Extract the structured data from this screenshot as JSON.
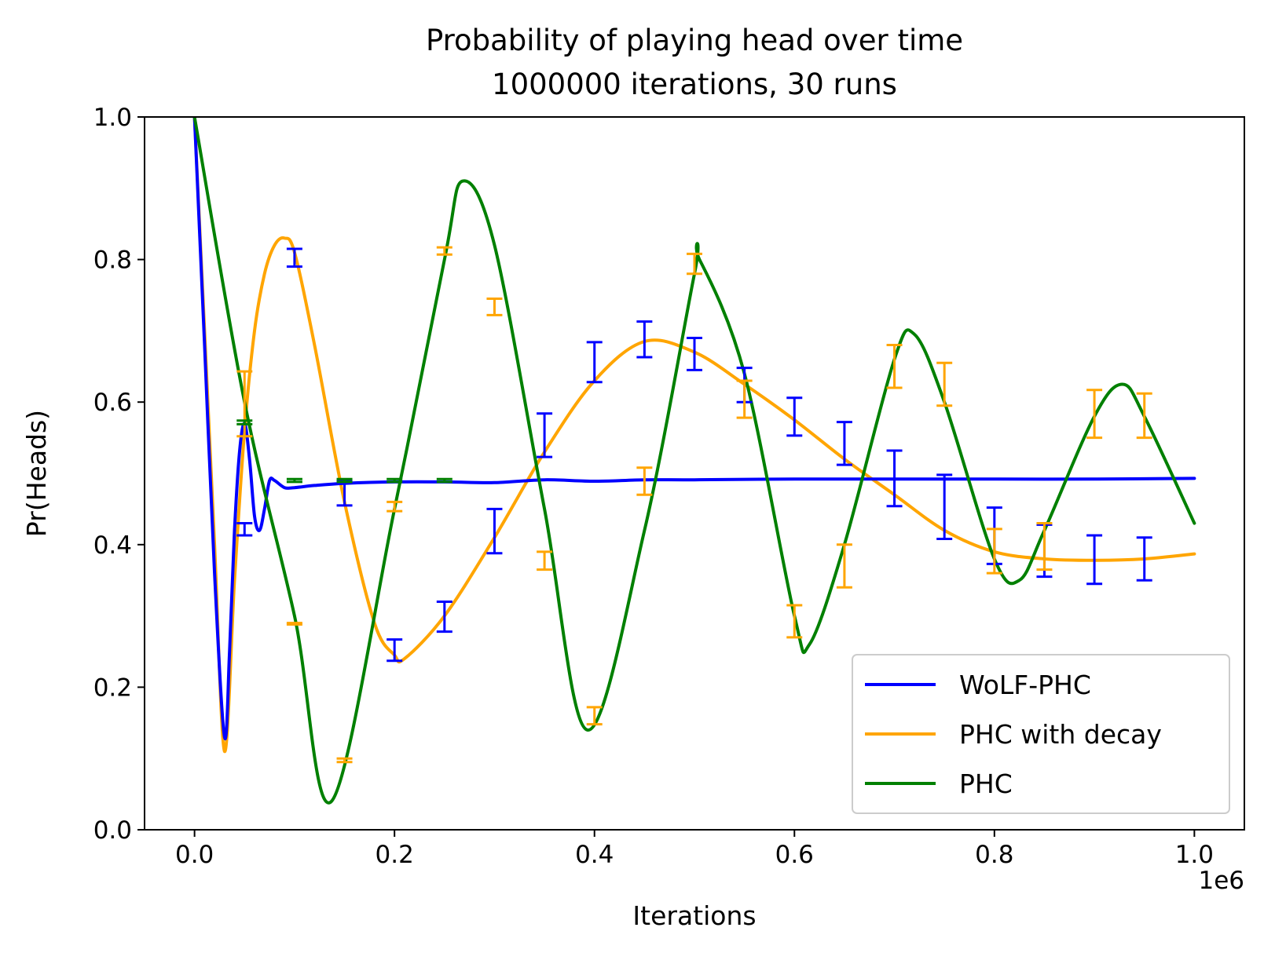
{
  "chart_data": {
    "type": "line",
    "title": "Probability of playing head over time",
    "subtitle": "1000000 iterations, 30 runs",
    "xlabel": "Iterations",
    "ylabel": "Pr(Heads)",
    "x_offset_label": "1e6",
    "xlim": [
      -0.05,
      1.05
    ],
    "ylim": [
      0,
      1
    ],
    "x_ticks": [
      0.0,
      0.2,
      0.4,
      0.6,
      0.8,
      1.0
    ],
    "x_tick_labels": [
      "0.0",
      "0.2",
      "0.4",
      "0.6",
      "0.8",
      "1.0"
    ],
    "y_ticks": [
      0.0,
      0.2,
      0.4,
      0.6,
      0.8,
      1.0
    ],
    "y_tick_labels": [
      "0.0",
      "0.2",
      "0.4",
      "0.6",
      "0.8",
      "1.0"
    ],
    "grid": false,
    "legend_position": "lower-right",
    "series": [
      {
        "name": "WoLF-PHC",
        "color": "#0000ff",
        "x": [
          0,
          0.01,
          0.02,
          0.03,
          0.035,
          0.04,
          0.045,
          0.05,
          0.055,
          0.06,
          0.065,
          0.07,
          0.075,
          0.08,
          0.09,
          0.1,
          0.12,
          0.15,
          0.2,
          0.25,
          0.3,
          0.35,
          0.4,
          0.45,
          0.5,
          0.6,
          0.7,
          0.8,
          0.9,
          1.0
        ],
        "y": [
          1.0,
          0.68,
          0.36,
          0.13,
          0.25,
          0.42,
          0.53,
          0.57,
          0.52,
          0.44,
          0.42,
          0.45,
          0.49,
          0.49,
          0.48,
          0.48,
          0.483,
          0.486,
          0.488,
          0.488,
          0.487,
          0.491,
          0.489,
          0.491,
          0.491,
          0.492,
          0.492,
          0.492,
          0.492,
          0.493
        ],
        "error_x": [
          0.05,
          0.1,
          0.15,
          0.2,
          0.25,
          0.3,
          0.35,
          0.4,
          0.45,
          0.5,
          0.55,
          0.6,
          0.65,
          0.7,
          0.75,
          0.8,
          0.85,
          0.9,
          0.95
        ],
        "error_low": [
          0.413,
          0.79,
          0.455,
          0.237,
          0.278,
          0.388,
          0.523,
          0.628,
          0.663,
          0.645,
          0.6,
          0.553,
          0.512,
          0.454,
          0.408,
          0.373,
          0.355,
          0.345,
          0.35
        ],
        "error_high": [
          0.43,
          0.815,
          0.49,
          0.267,
          0.32,
          0.45,
          0.584,
          0.684,
          0.713,
          0.69,
          0.648,
          0.606,
          0.572,
          0.532,
          0.498,
          0.452,
          0.428,
          0.413,
          0.41
        ]
      },
      {
        "name": "PHC with decay",
        "color": "#ffa500",
        "x": [
          0,
          0.01,
          0.02,
          0.03,
          0.04,
          0.05,
          0.06,
          0.07,
          0.08,
          0.09,
          0.1,
          0.12,
          0.15,
          0.18,
          0.2,
          0.21,
          0.25,
          0.3,
          0.35,
          0.4,
          0.45,
          0.5,
          0.55,
          0.6,
          0.65,
          0.7,
          0.75,
          0.8,
          0.85,
          0.9,
          0.95,
          1.0
        ],
        "y": [
          1.0,
          0.7,
          0.4,
          0.11,
          0.35,
          0.56,
          0.7,
          0.78,
          0.82,
          0.83,
          0.81,
          0.68,
          0.46,
          0.29,
          0.245,
          0.24,
          0.3,
          0.41,
          0.53,
          0.63,
          0.685,
          0.67,
          0.625,
          0.575,
          0.52,
          0.47,
          0.42,
          0.39,
          0.38,
          0.378,
          0.38,
          0.387
        ],
        "error_x": [
          0.05,
          0.1,
          0.15,
          0.2,
          0.25,
          0.3,
          0.35,
          0.4,
          0.45,
          0.5,
          0.55,
          0.6,
          0.65,
          0.7,
          0.75,
          0.8,
          0.85,
          0.9,
          0.95
        ],
        "error_low": [
          0.552,
          0.288,
          0.095,
          0.447,
          0.807,
          0.722,
          0.365,
          0.148,
          0.47,
          0.78,
          0.578,
          0.27,
          0.34,
          0.62,
          0.595,
          0.36,
          0.365,
          0.55,
          0.55
        ],
        "error_high": [
          0.643,
          0.29,
          0.1,
          0.46,
          0.817,
          0.745,
          0.39,
          0.172,
          0.508,
          0.808,
          0.63,
          0.315,
          0.4,
          0.68,
          0.655,
          0.422,
          0.43,
          0.617,
          0.612
        ]
      },
      {
        "name": "PHC",
        "color": "#008000",
        "x": [
          0,
          0.05,
          0.1,
          0.137,
          0.2,
          0.25,
          0.268,
          0.3,
          0.35,
          0.393,
          0.45,
          0.5,
          0.505,
          0.55,
          0.6,
          0.615,
          0.65,
          0.7,
          0.72,
          0.75,
          0.8,
          0.825,
          0.85,
          0.9,
          0.928,
          0.95,
          1.0
        ],
        "y": [
          1.0,
          0.6,
          0.3,
          0.04,
          0.45,
          0.8,
          0.91,
          0.82,
          0.45,
          0.14,
          0.42,
          0.78,
          0.8,
          0.64,
          0.3,
          0.26,
          0.4,
          0.66,
          0.695,
          0.6,
          0.38,
          0.35,
          0.42,
          0.58,
          0.625,
          0.58,
          0.43
        ],
        "error_x": [
          0.05,
          0.1,
          0.15,
          0.2,
          0.25
        ],
        "error_low": [
          0.569,
          0.488,
          0.488,
          0.488,
          0.488
        ],
        "error_high": [
          0.574,
          0.492,
          0.492,
          0.492,
          0.492
        ]
      }
    ]
  }
}
